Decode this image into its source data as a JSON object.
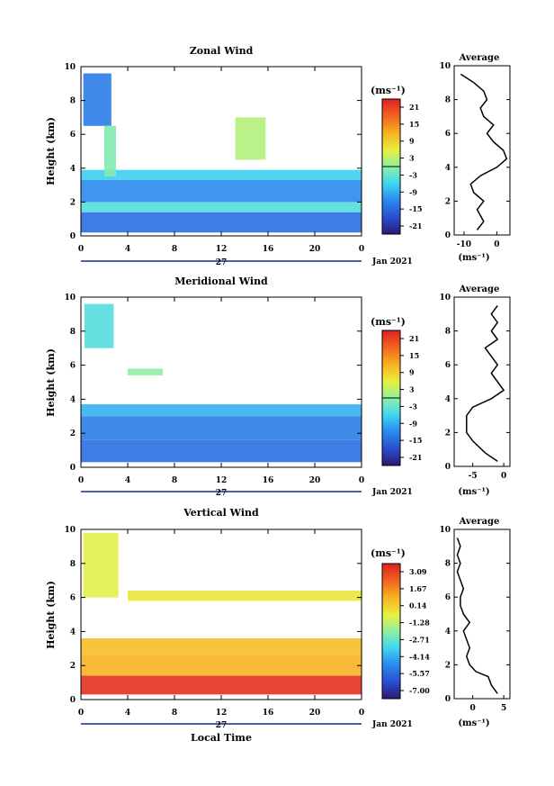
{
  "panels": [
    {
      "title": "Zonal Wind",
      "ylabel": "Height (km)",
      "yticks": [
        "0",
        "2",
        "4",
        "6",
        "8",
        "10"
      ],
      "xticks": [
        "0",
        "4",
        "8",
        "12",
        "16",
        "20",
        "0"
      ],
      "day": "27",
      "date": "Jan 2021",
      "unit": "(ms⁻¹)",
      "colorbar_ticks": [
        "21",
        "15",
        "9",
        "3",
        "-3",
        "-9",
        "-15",
        "-21"
      ],
      "avg_title": "Average",
      "avg_xticks": [
        "-10",
        "0"
      ],
      "avg_xlabel": "(ms⁻¹)"
    },
    {
      "title": "Meridional Wind",
      "ylabel": "Height (km)",
      "yticks": [
        "0",
        "2",
        "4",
        "6",
        "8",
        "10"
      ],
      "xticks": [
        "0",
        "4",
        "8",
        "12",
        "16",
        "20",
        "0"
      ],
      "day": "27",
      "date": "Jan 2021",
      "unit": "(ms⁻¹)",
      "colorbar_ticks": [
        "21",
        "15",
        "9",
        "3",
        "-3",
        "-9",
        "-15",
        "-21"
      ],
      "avg_title": "Average",
      "avg_xticks": [
        "-5",
        "0"
      ],
      "avg_xlabel": "(ms⁻¹)"
    },
    {
      "title": "Vertical Wind",
      "ylabel": "Height (km)",
      "yticks": [
        "0",
        "2",
        "4",
        "6",
        "8",
        "10"
      ],
      "xticks": [
        "0",
        "4",
        "8",
        "12",
        "16",
        "20",
        "0"
      ],
      "day": "27",
      "date": "Jan 2021",
      "unit": "(ms⁻¹)",
      "colorbar_ticks": [
        "3.09",
        "1.67",
        "0.14",
        "-1.28",
        "-2.71",
        "-4.14",
        "-5.57",
        "-7.00"
      ],
      "avg_title": "Average",
      "avg_xticks": [
        "0",
        "5"
      ],
      "avg_xlabel": "(ms⁻¹)",
      "xlabel": "Local Time"
    }
  ],
  "chart_data": [
    {
      "type": "heatmap",
      "title": "Zonal Wind",
      "xlabel": "",
      "ylabel": "Height (km)",
      "xlim": [
        0,
        24
      ],
      "ylim": [
        0,
        10
      ],
      "colorbar": {
        "min": -21,
        "max": 21,
        "unit": "ms-1"
      },
      "layers": [
        {
          "x0": 0,
          "x1": 24,
          "y0": 0.2,
          "y1": 1.4,
          "value": -13
        },
        {
          "x0": 0,
          "x1": 24,
          "y0": 1.4,
          "y1": 2.0,
          "value": -4
        },
        {
          "x0": 0,
          "x1": 24,
          "y0": 2.0,
          "y1": 3.3,
          "value": -11
        },
        {
          "x0": 0,
          "x1": 24,
          "y0": 3.3,
          "y1": 3.9,
          "value": -6
        },
        {
          "x0": 0.2,
          "x1": 2.6,
          "y0": 6.5,
          "y1": 9.6,
          "value": -12
        },
        {
          "x0": 2.0,
          "x1": 3.0,
          "y0": 3.5,
          "y1": 6.5,
          "value": -1
        },
        {
          "x0": 13.2,
          "x1": 15.8,
          "y0": 4.5,
          "y1": 7.0,
          "value": 2
        }
      ],
      "average_profile": {
        "height": [
          0.3,
          0.8,
          1.5,
          2.0,
          2.5,
          3.0,
          3.5,
          4.0,
          4.5,
          5.0,
          5.5,
          6.0,
          6.5,
          7.0,
          7.5,
          8.0,
          8.5,
          9.0,
          9.5
        ],
        "value": [
          -6,
          -4,
          -6,
          -4,
          -7,
          -8,
          -5,
          0,
          3,
          2,
          -1,
          -3,
          -1,
          -4,
          -5,
          -3,
          -4,
          -7,
          -11
        ]
      }
    },
    {
      "type": "heatmap",
      "title": "Meridional Wind",
      "xlabel": "",
      "ylabel": "Height (km)",
      "xlim": [
        0,
        24
      ],
      "ylim": [
        0,
        10
      ],
      "colorbar": {
        "min": -21,
        "max": 21,
        "unit": "ms-1"
      },
      "layers": [
        {
          "x0": 0,
          "x1": 24,
          "y0": 0.3,
          "y1": 1.6,
          "value": -13
        },
        {
          "x0": 0,
          "x1": 24,
          "y0": 1.6,
          "y1": 3.0,
          "value": -12
        },
        {
          "x0": 0,
          "x1": 24,
          "y0": 3.0,
          "y1": 3.7,
          "value": -8
        },
        {
          "x0": 0.3,
          "x1": 2.8,
          "y0": 7.0,
          "y1": 9.6,
          "value": -4
        },
        {
          "x0": 4.0,
          "x1": 7.0,
          "y0": 5.4,
          "y1": 5.8,
          "value": 0
        }
      ],
      "average_profile": {
        "height": [
          0.3,
          0.8,
          1.5,
          2.0,
          2.5,
          3.0,
          3.5,
          4.0,
          4.5,
          5.0,
          5.5,
          6.0,
          6.5,
          7.0,
          7.5,
          8.0,
          8.5,
          9.0,
          9.5
        ],
        "value": [
          -1,
          -3,
          -5,
          -6,
          -6,
          -6,
          -5,
          -2,
          0,
          -1,
          -2,
          -1,
          -2,
          -3,
          -1,
          -2,
          -1,
          -2,
          -1
        ]
      }
    },
    {
      "type": "heatmap",
      "title": "Vertical Wind",
      "xlabel": "Local Time",
      "ylabel": "Height (km)",
      "xlim": [
        0,
        24
      ],
      "ylim": [
        0,
        10
      ],
      "colorbar": {
        "min": -7.0,
        "max": 3.09,
        "unit": "ms-1"
      },
      "layers": [
        {
          "x0": 0,
          "x1": 24,
          "y0": 0.3,
          "y1": 1.4,
          "value": 2.8
        },
        {
          "x0": 0,
          "x1": 24,
          "y0": 1.4,
          "y1": 2.6,
          "value": 0.5
        },
        {
          "x0": 0,
          "x1": 24,
          "y0": 2.6,
          "y1": 3.6,
          "value": 0.3
        },
        {
          "x0": 0.2,
          "x1": 3.2,
          "y0": 6.0,
          "y1": 9.8,
          "value": -0.8
        },
        {
          "x0": 4.0,
          "x1": 24,
          "y0": 5.8,
          "y1": 6.4,
          "value": -0.5
        }
      ],
      "average_profile": {
        "height": [
          0.3,
          0.8,
          1.3,
          1.6,
          2.0,
          2.5,
          3.0,
          3.5,
          4.0,
          4.5,
          5.0,
          5.5,
          6.0,
          6.5,
          7.0,
          7.5,
          8.0,
          8.5,
          9.0,
          9.5
        ],
        "value": [
          4,
          3,
          2.5,
          0.5,
          -0.5,
          -1,
          -0.5,
          -1,
          -1.5,
          -0.5,
          -1.5,
          -2,
          -2,
          -1.5,
          -2,
          -2.5,
          -2,
          -2.5,
          -2,
          -2.5
        ]
      }
    }
  ]
}
